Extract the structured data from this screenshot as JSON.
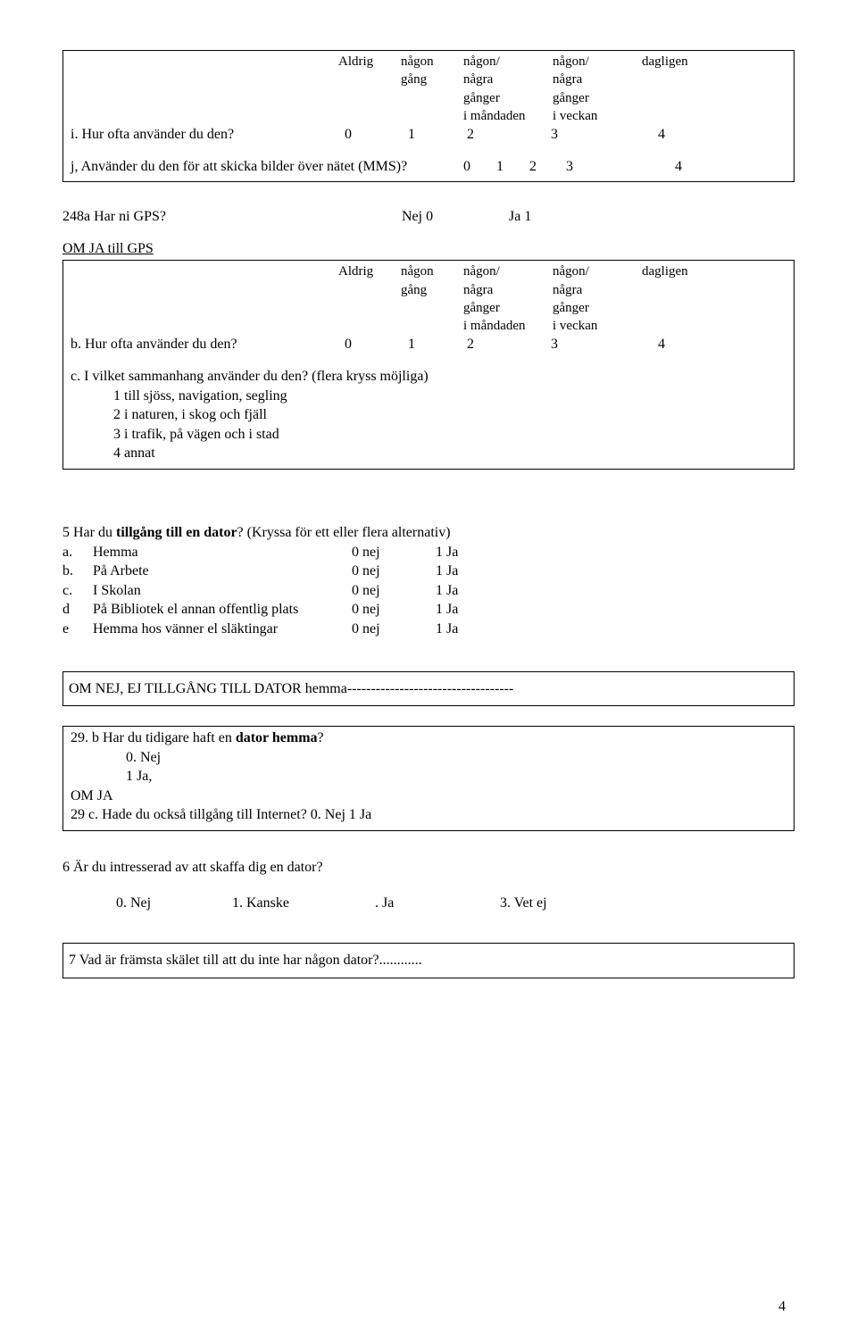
{
  "scale_header": {
    "col1": "Aldrig",
    "col2": "någon\ngång",
    "col3": "någon/\nnågra\ngånger\ni måndaden",
    "col4": "någon/\nnågra\ngånger\ni veckan",
    "col5": "dagligen"
  },
  "box1": {
    "q_i": "i. Hur ofta använder du den?",
    "q_j": "j, Använder du den för att skicka bilder över nätet (MMS)?",
    "v0": "0",
    "v1": "1",
    "v2": "2",
    "v3": "3",
    "v4": "4"
  },
  "q248a": {
    "text": "248a  Har ni GPS?",
    "nej": "Nej  0",
    "ja": "Ja  1"
  },
  "om_ja_gps": "OM JA till GPS",
  "box2": {
    "q_b": "b. Hur ofta använder du den?",
    "v0": "0",
    "v1": "1",
    "v2": "2",
    "v3": "3",
    "v4": "4",
    "q_c": "c. I vilket sammanhang använder du den?  (flera kryss möjliga)",
    "opt1": "1 till sjöss, navigation, segling",
    "opt2": "2  i naturen, i skog och fjäll",
    "opt3": "3 i trafik, på vägen och i stad",
    "opt4": "4 annat"
  },
  "q5": {
    "title_a": "5 Har du ",
    "title_b": "tillgång till en dator",
    "title_c": "? (Kryssa för ett eller flera  alternativ)",
    "rows": [
      {
        "k": "a.",
        "label": "Hemma",
        "nej": "0 nej",
        "ja": "1 Ja"
      },
      {
        "k": "b.",
        "label": "På Arbete",
        "nej": "0 nej",
        "ja": "1 Ja"
      },
      {
        "k": "c.",
        "label": "I Skolan",
        "nej": "0 nej",
        "ja": "1 Ja"
      },
      {
        "k": "d",
        "label": "På Bibliotek el annan offentlig plats",
        "nej": "0 nej",
        "ja": "1 Ja"
      },
      {
        "k": "e",
        "label": "Hemma hos vänner el släktingar",
        "nej": "0 nej",
        "ja": "1 Ja"
      }
    ]
  },
  "om_nej_box": "OM NEJ, EJ TILLGÅNG TILL DATOR hemma-----------------------------------",
  "box29": {
    "q29b_a": "29. b    Har du tidigare haft en ",
    "q29b_b": "dator hemma",
    "q29b_c": "?",
    "opt0": "0. Nej",
    "opt1": "1 Ja,",
    "om_ja": "OM JA",
    "q29c": "29 c.    Hade du också tillgång till Internet?  0. Nej    1 Ja"
  },
  "q6": {
    "text": "6 Är du intresserad av att skaffa dig en dator?",
    "o0": "0. Nej",
    "o1": "1. Kanske",
    "o2": ". Ja",
    "o3": "3. Vet ej"
  },
  "q7": "7 Vad är främsta skälet till att du inte har någon  dator?............",
  "page": "4"
}
